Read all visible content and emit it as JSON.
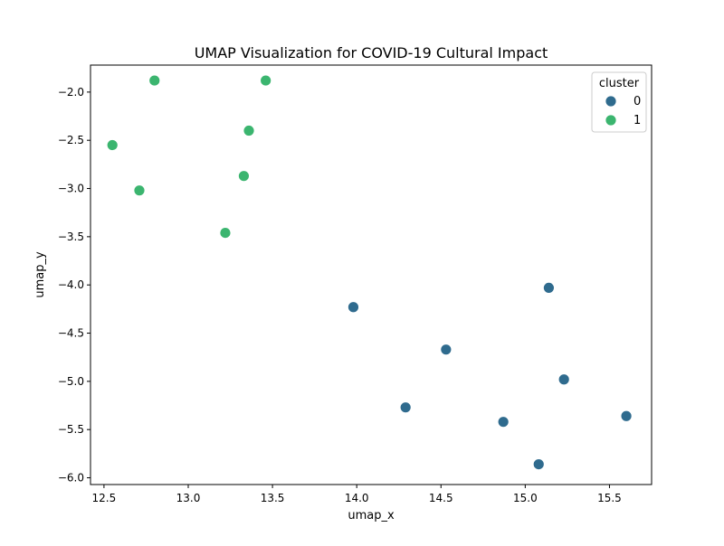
{
  "chart_data": {
    "type": "scatter",
    "title": "UMAP Visualization for COVID-19 Cultural Impact",
    "xlabel": "umap_x",
    "ylabel": "umap_y",
    "xlim": [
      12.42,
      15.75
    ],
    "ylim": [
      -6.07,
      -1.72
    ],
    "x_ticks": [
      12.5,
      13.0,
      13.5,
      14.0,
      14.5,
      15.0,
      15.5
    ],
    "x_tick_labels": [
      "12.5",
      "13.0",
      "13.5",
      "14.0",
      "14.5",
      "15.0",
      "15.5"
    ],
    "y_ticks": [
      -2.0,
      -2.5,
      -3.0,
      -3.5,
      -4.0,
      -4.5,
      -5.0,
      -5.5,
      -6.0
    ],
    "y_tick_labels": [
      "−2.0",
      "−2.5",
      "−3.0",
      "−3.5",
      "−4.0",
      "−4.5",
      "−5.0",
      "−5.5",
      "−6.0"
    ],
    "grid": false,
    "legend": {
      "title": "cluster",
      "placement": "top-right"
    },
    "series": [
      {
        "name": "0",
        "color": "#2f6b8e",
        "points": [
          {
            "x": 13.98,
            "y": -4.23
          },
          {
            "x": 14.53,
            "y": -4.67
          },
          {
            "x": 14.29,
            "y": -5.27
          },
          {
            "x": 14.87,
            "y": -5.42
          },
          {
            "x": 15.08,
            "y": -5.86
          },
          {
            "x": 15.14,
            "y": -4.03
          },
          {
            "x": 15.23,
            "y": -4.98
          },
          {
            "x": 15.6,
            "y": -5.36
          }
        ]
      },
      {
        "name": "1",
        "color": "#3bb56f",
        "points": [
          {
            "x": 12.8,
            "y": -1.88
          },
          {
            "x": 13.46,
            "y": -1.88
          },
          {
            "x": 13.36,
            "y": -2.4
          },
          {
            "x": 12.55,
            "y": -2.55
          },
          {
            "x": 13.33,
            "y": -2.87
          },
          {
            "x": 12.71,
            "y": -3.02
          },
          {
            "x": 13.22,
            "y": -3.46
          }
        ]
      }
    ]
  }
}
